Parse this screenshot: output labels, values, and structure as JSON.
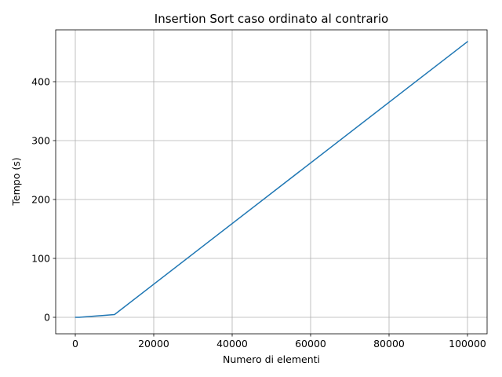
{
  "chart_data": {
    "type": "line",
    "title": "Insertion Sort caso ordinato al contrario",
    "xlabel": "Numero di elementi",
    "ylabel": "Tempo (s)",
    "xlim": [
      -5000,
      105000
    ],
    "ylim": [
      -28,
      488
    ],
    "xticks": [
      0,
      20000,
      40000,
      60000,
      80000,
      100000
    ],
    "yticks": [
      0,
      100,
      200,
      300,
      400
    ],
    "xtick_labels": [
      "0",
      "20000",
      "40000",
      "60000",
      "80000",
      "100000"
    ],
    "ytick_labels": [
      "0",
      "100",
      "200",
      "300",
      "400"
    ],
    "grid": true,
    "series": [
      {
        "color": "#1f77b4",
        "x": [
          100,
          1000,
          10000,
          100000
        ],
        "y": [
          0.0,
          0.05,
          4.7,
          468
        ]
      }
    ]
  }
}
